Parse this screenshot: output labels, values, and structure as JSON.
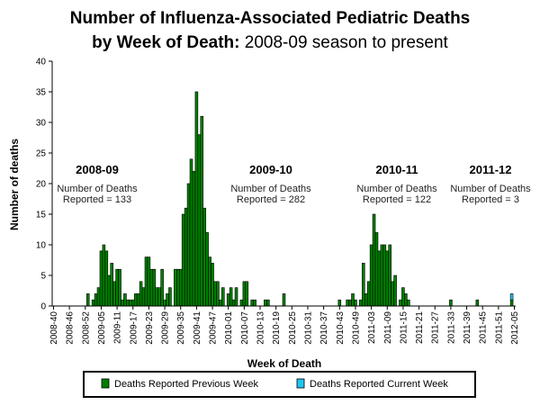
{
  "chart_data": {
    "type": "bar",
    "title_bold_1": "Number of Influenza-Associated Pediatric Deaths",
    "title_bold_2": "by Week of Death:",
    "title_normal_2": " 2008-09 season to present",
    "xlabel": "Week of Death",
    "ylabel": "Number of deaths",
    "ylim": [
      0,
      40
    ],
    "yticks": [
      0,
      5,
      10,
      15,
      20,
      25,
      30,
      35,
      40
    ],
    "xtick_labels": [
      "2008-40",
      "2008-46",
      "2008-52",
      "2009-05",
      "2009-11",
      "2009-17",
      "2009-23",
      "2009-29",
      "2009-35",
      "2009-41",
      "2009-47",
      "2010-01",
      "2010-07",
      "2010-13",
      "2010-19",
      "2010-25",
      "2010-31",
      "2010-37",
      "2010-43",
      "2010-49",
      "2011-03",
      "2011-09",
      "2011-15",
      "2011-21",
      "2011-27",
      "2011-33",
      "2011-39",
      "2011-45",
      "2011-51",
      "2012-05"
    ],
    "categories": [
      "2008-40",
      "2008-41",
      "2008-42",
      "2008-43",
      "2008-44",
      "2008-45",
      "2008-46",
      "2008-47",
      "2008-48",
      "2008-49",
      "2008-50",
      "2008-51",
      "2008-52",
      "2008-53",
      "2009-01",
      "2009-02",
      "2009-03",
      "2009-04",
      "2009-05",
      "2009-06",
      "2009-07",
      "2009-08",
      "2009-09",
      "2009-10",
      "2009-11",
      "2009-12",
      "2009-13",
      "2009-14",
      "2009-15",
      "2009-16",
      "2009-17",
      "2009-18",
      "2009-19",
      "2009-20",
      "2009-21",
      "2009-22",
      "2009-23",
      "2009-24",
      "2009-25",
      "2009-26",
      "2009-27",
      "2009-28",
      "2009-29",
      "2009-30",
      "2009-31",
      "2009-32",
      "2009-33",
      "2009-34",
      "2009-35",
      "2009-36",
      "2009-37",
      "2009-38",
      "2009-39",
      "2009-40",
      "2009-41",
      "2009-42",
      "2009-43",
      "2009-44",
      "2009-45",
      "2009-46",
      "2009-47",
      "2009-48",
      "2009-49",
      "2009-50",
      "2009-51",
      "2009-52",
      "2010-01",
      "2010-02",
      "2010-03",
      "2010-04",
      "2010-05",
      "2010-06",
      "2010-07",
      "2010-08",
      "2010-09",
      "2010-10",
      "2010-11",
      "2010-12",
      "2010-13",
      "2010-14",
      "2010-15",
      "2010-16",
      "2010-17",
      "2010-18",
      "2010-19",
      "2010-20",
      "2010-21",
      "2010-22",
      "2010-23",
      "2010-24",
      "2010-25",
      "2010-26",
      "2010-27",
      "2010-28",
      "2010-29",
      "2010-30",
      "2010-31",
      "2010-32",
      "2010-33",
      "2010-34",
      "2010-35",
      "2010-36",
      "2010-37",
      "2010-38",
      "2010-39",
      "2010-40",
      "2010-41",
      "2010-42",
      "2010-43",
      "2010-44",
      "2010-45",
      "2010-46",
      "2010-47",
      "2010-48",
      "2010-49",
      "2010-50",
      "2010-51",
      "2010-52",
      "2011-01",
      "2011-02",
      "2011-03",
      "2011-04",
      "2011-05",
      "2011-06",
      "2011-07",
      "2011-08",
      "2011-09",
      "2011-10",
      "2011-11",
      "2011-12",
      "2011-13",
      "2011-14",
      "2011-15",
      "2011-16",
      "2011-17",
      "2011-18",
      "2011-19",
      "2011-20",
      "2011-21",
      "2011-22",
      "2011-23",
      "2011-24",
      "2011-25",
      "2011-26",
      "2011-27",
      "2011-28",
      "2011-29",
      "2011-30",
      "2011-31",
      "2011-32",
      "2011-33",
      "2011-34",
      "2011-35",
      "2011-36",
      "2011-37",
      "2011-38",
      "2011-39",
      "2011-40",
      "2011-41",
      "2011-42",
      "2011-43",
      "2011-44",
      "2011-45",
      "2011-46",
      "2011-47",
      "2011-48",
      "2011-49",
      "2011-50",
      "2011-51",
      "2011-52",
      "2012-01",
      "2012-02",
      "2012-03",
      "2012-04",
      "2012-05"
    ],
    "series": [
      {
        "name": "Deaths Reported Previous Week",
        "color": "#008000",
        "values": [
          0,
          0,
          0,
          0,
          0,
          0,
          0,
          0,
          0,
          0,
          0,
          0,
          0,
          2,
          0,
          1,
          2,
          3,
          9,
          10,
          9,
          5,
          7,
          4,
          6,
          6,
          1,
          2,
          1,
          1,
          1,
          2,
          2,
          4,
          3,
          8,
          8,
          6,
          6,
          3,
          3,
          6,
          1,
          2,
          3,
          0,
          6,
          6,
          6,
          15,
          16,
          20,
          24,
          22,
          35,
          28,
          31,
          16,
          12,
          8,
          7,
          4,
          4,
          1,
          3,
          0,
          2,
          3,
          1,
          3,
          0,
          1,
          4,
          4,
          0,
          1,
          1,
          0,
          0,
          0,
          1,
          1,
          0,
          0,
          0,
          0,
          0,
          2,
          0,
          0,
          0,
          0,
          0,
          0,
          0,
          0,
          0,
          0,
          0,
          0,
          0,
          0,
          0,
          0,
          0,
          0,
          0,
          0,
          1,
          0,
          0,
          1,
          1,
          2,
          1,
          0,
          1,
          7,
          2,
          4,
          10,
          15,
          12,
          9,
          10,
          10,
          9,
          10,
          4,
          5,
          0,
          1,
          3,
          2,
          1,
          0,
          0,
          0,
          0,
          0,
          0,
          0,
          0,
          0,
          0,
          0,
          0,
          0,
          0,
          0,
          1,
          0,
          0,
          0,
          0,
          0,
          0,
          0,
          0,
          0,
          1,
          0,
          0,
          0,
          0,
          0,
          0,
          0,
          0,
          0,
          0,
          0,
          0,
          1,
          0
        ]
      },
      {
        "name": "Deaths Reported Current Week",
        "color": "#22c4f0",
        "values": [
          0,
          0,
          0,
          0,
          0,
          0,
          0,
          0,
          0,
          0,
          0,
          0,
          0,
          0,
          0,
          0,
          0,
          0,
          0,
          0,
          0,
          0,
          0,
          0,
          0,
          0,
          0,
          0,
          0,
          0,
          0,
          0,
          0,
          0,
          0,
          0,
          0,
          0,
          0,
          0,
          0,
          0,
          0,
          0,
          0,
          0,
          0,
          0,
          0,
          0,
          0,
          0,
          0,
          0,
          0,
          0,
          0,
          0,
          0,
          0,
          0,
          0,
          0,
          0,
          0,
          0,
          0,
          0,
          0,
          0,
          0,
          0,
          0,
          0,
          0,
          0,
          0,
          0,
          0,
          0,
          0,
          0,
          0,
          0,
          0,
          0,
          0,
          0,
          0,
          0,
          0,
          0,
          0,
          0,
          0,
          0,
          0,
          0,
          0,
          0,
          0,
          0,
          0,
          0,
          0,
          0,
          0,
          0,
          0,
          0,
          0,
          0,
          0,
          0,
          0,
          0,
          0,
          0,
          0,
          0,
          0,
          0,
          0,
          0,
          0,
          0,
          0,
          0,
          0,
          0,
          0,
          0,
          0,
          0,
          0,
          0,
          0,
          0,
          0,
          0,
          0,
          0,
          0,
          0,
          0,
          0,
          0,
          0,
          0,
          0,
          0,
          0,
          0,
          0,
          0,
          0,
          0,
          0,
          0,
          0,
          0,
          0,
          0,
          0,
          0,
          0,
          0,
          0,
          0,
          0,
          0,
          0,
          0,
          1,
          0
        ]
      }
    ],
    "stacked": true,
    "grid": false,
    "legend_position": "bottom",
    "annotations": [
      {
        "season": "2008-09",
        "line1": "Number of Deaths",
        "line2": "Reported = 133"
      },
      {
        "season": "2009-10",
        "line1": "Number of Deaths",
        "line2": "Reported = 282"
      },
      {
        "season": "2010-11",
        "line1": "Number of Deaths",
        "line2": "Reported = 122"
      },
      {
        "season": "2011-12",
        "line1": "Number of Deaths",
        "line2": "Reported = 3"
      }
    ]
  }
}
